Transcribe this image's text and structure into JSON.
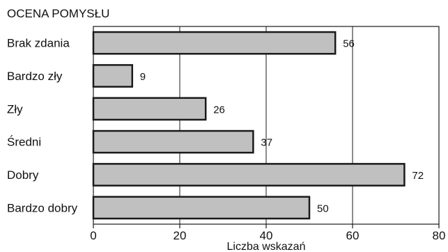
{
  "chart_data": {
    "type": "bar",
    "orientation": "horizontal",
    "title": "OCENA POMYSŁU",
    "xlabel": "Liczba wskazań",
    "ylabel": "",
    "categories": [
      "Brak zdania",
      "Bardzo zły",
      "Zły",
      "Średni",
      "Dobry",
      "Bardzo dobry"
    ],
    "values": [
      56,
      9,
      26,
      37,
      72,
      50
    ],
    "xlim": [
      0,
      80
    ],
    "x_ticks": [
      0,
      20,
      40,
      60,
      80
    ],
    "grid": "vertical",
    "legend": "none",
    "data_labels": true,
    "colors": {
      "bar_fill": "#c0c0c0",
      "bar_stroke": "#1a1a1a",
      "axis": "#1a1a1a",
      "grid": "#1a1a1a",
      "text": "#111111",
      "background": "#ffffff"
    }
  }
}
